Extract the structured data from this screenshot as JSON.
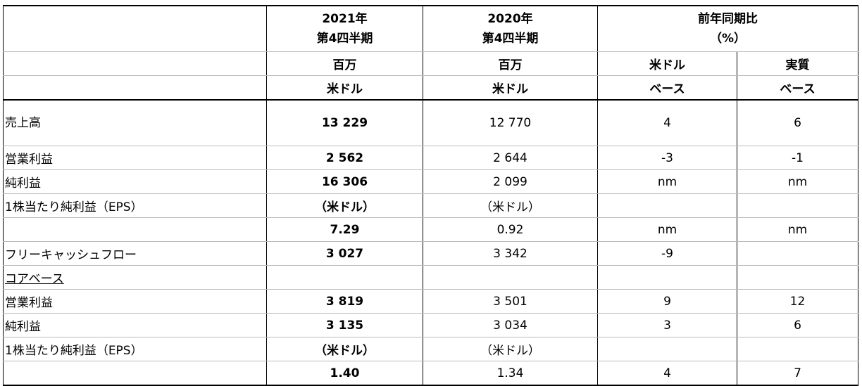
{
  "header": {
    "col_2021": [
      "2021年",
      "第4四半期"
    ],
    "col_2020": [
      "2020年",
      "第4四半期"
    ],
    "yoy": [
      "前年同期比",
      "（%）"
    ],
    "units_2021": [
      "百万",
      "米ドル"
    ],
    "units_2020": [
      "百万",
      "米ドル"
    ],
    "usd_basis": [
      "米ドル",
      "ベース"
    ],
    "real_basis": [
      "実質",
      "ベース"
    ]
  },
  "table": {
    "rows": [
      [
        "売上高",
        "13 229",
        "12 770",
        "4",
        "6"
      ],
      [
        "営業利益",
        "2 562",
        "2 644",
        "-3",
        "-1"
      ],
      [
        "純利益",
        "16 306",
        "2 099",
        "nm",
        "nm"
      ],
      [
        "1株当たり純利益（EPS）",
        "（米ドル）",
        "（米ドル）",
        null,
        null
      ],
      [
        null,
        "7.29",
        "0.92",
        "nm",
        "nm"
      ],
      [
        "フリーキャッシュフロー",
        "3 027",
        "3 342",
        "-9",
        null
      ],
      [
        "コアベース",
        null,
        null,
        null,
        null
      ],
      [
        "営業利益",
        "3 819",
        "3 501",
        "9",
        "12"
      ],
      [
        "純利益",
        "3 135",
        "3 034",
        "3",
        "6"
      ],
      [
        "1株当たり純利益（EPS）",
        "（米ドル）",
        "（米ドル）",
        null,
        null
      ],
      [
        null,
        "1.40",
        "1.34",
        "4",
        "7"
      ]
    ]
  }
}
